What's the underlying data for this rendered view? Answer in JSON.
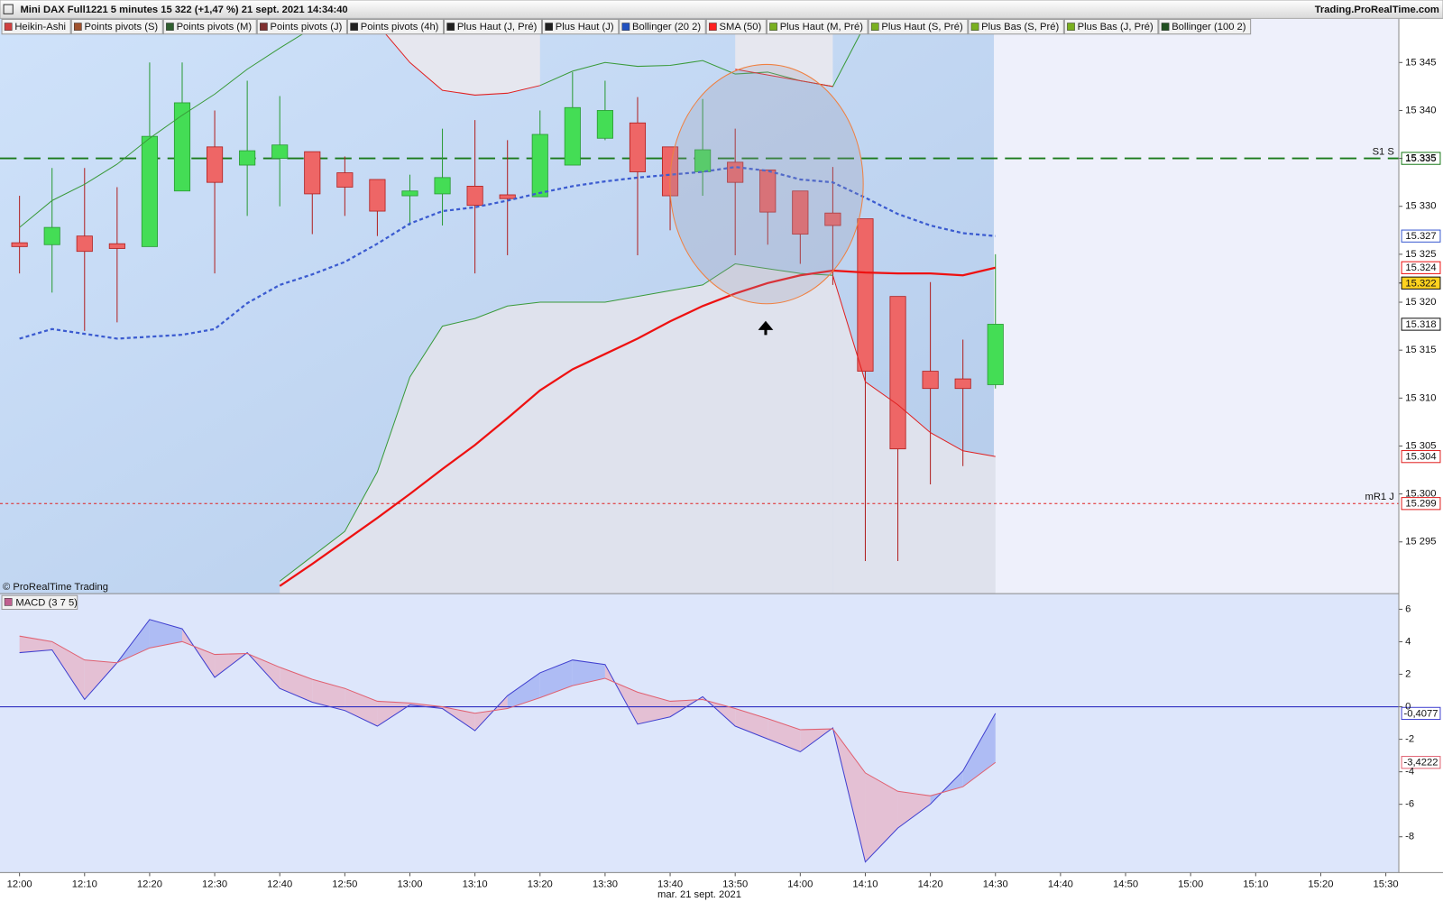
{
  "header": {
    "title": "Mini DAX Full1221 5 minutes 15 322 (+1,47 %) 21 sept. 2021 14:34:40",
    "site": "Trading.ProRealTime.com"
  },
  "indicator_tabs": [
    {
      "label": "Heikin-Ashi",
      "color": "#d04040"
    },
    {
      "label": "Points pivots (S)",
      "color": "#a0522d"
    },
    {
      "label": "Points pivots (M)",
      "color": "#306030"
    },
    {
      "label": "Points pivots (J)",
      "color": "#803030"
    },
    {
      "label": "Points pivots (4h)",
      "color": "#202020"
    },
    {
      "label": "Plus Haut (J, Pré)",
      "color": "#202020"
    },
    {
      "label": "Plus Haut (J)",
      "color": "#202020"
    },
    {
      "label": "Bollinger (20 2)",
      "color": "#2050c0"
    },
    {
      "label": "SMA (50)",
      "color": "#ff2020"
    },
    {
      "label": "Plus Haut (M, Pré)",
      "color": "#7ab020"
    },
    {
      "label": "Plus Haut (S, Pré)",
      "color": "#7ab020"
    },
    {
      "label": "Plus Bas (S, Pré)",
      "color": "#7ab020"
    },
    {
      "label": "Plus Bas (J, Pré)",
      "color": "#7ab020"
    },
    {
      "label": "Bollinger (100 2)",
      "color": "#205020"
    }
  ],
  "copyright": "© ProRealTime Trading",
  "chart_data": [
    {
      "type": "candlestick",
      "x": [
        "12:00",
        "12:05",
        "12:10",
        "12:15",
        "12:20",
        "12:25",
        "12:30",
        "12:35",
        "12:40",
        "12:45",
        "12:50",
        "12:55",
        "13:00",
        "13:05",
        "13:10",
        "13:15",
        "13:20",
        "13:25",
        "13:30",
        "13:35",
        "13:40",
        "13:45",
        "13:50",
        "13:55",
        "14:00",
        "14:05",
        "14:10",
        "14:15",
        "14:20",
        "14:25",
        "14:30"
      ],
      "open": [
        15326.2,
        15326.0,
        15326.9,
        15326.1,
        15325.8,
        15331.6,
        15336.2,
        15334.3,
        15335.0,
        15335.7,
        15333.5,
        15332.8,
        15331.1,
        15331.3,
        15332.1,
        15331.2,
        15331.0,
        15334.3,
        15337.1,
        15338.7,
        15336.2,
        15333.6,
        15334.6,
        15333.8,
        15331.6,
        15329.3,
        15328.7,
        15320.6,
        15312.8,
        15312.0,
        15311.4
      ],
      "high": [
        15331.1,
        15334.0,
        15334.0,
        15332.0,
        15345.0,
        15345.0,
        15340.0,
        15343.1,
        15341.5,
        15335.7,
        15335.2,
        15332.8,
        15333.3,
        15338.1,
        15339.0,
        15336.9,
        15340.0,
        15344.0,
        15343.1,
        15341.4,
        15336.2,
        15341.2,
        15338.1,
        15333.8,
        15331.6,
        15334.1,
        15328.7,
        15320.6,
        15322.1,
        15316.1,
        15325.0
      ],
      "low": [
        15323.0,
        15321.0,
        15317.0,
        15317.9,
        15325.8,
        15331.6,
        15323.0,
        15329.0,
        15330.0,
        15327.1,
        15329.0,
        15326.9,
        15328.0,
        15328.0,
        15323.0,
        15324.9,
        15331.0,
        15334.3,
        15336.9,
        15324.9,
        15327.5,
        15331.1,
        15324.9,
        15326.0,
        15324.0,
        15321.8,
        15293.0,
        15293.0,
        15301.0,
        15302.9,
        15311.0
      ],
      "close": [
        15325.8,
        15327.8,
        15325.3,
        15325.6,
        15337.3,
        15340.8,
        15332.5,
        15335.8,
        15336.4,
        15331.3,
        15332.0,
        15329.5,
        15331.6,
        15333.0,
        15330.1,
        15330.8,
        15337.5,
        15340.3,
        15340.0,
        15333.6,
        15331.1,
        15335.9,
        15332.5,
        15329.4,
        15327.1,
        15328.0,
        15312.8,
        15304.7,
        15311.0,
        15311.0,
        15317.7
      ],
      "up_color": "#44dd55",
      "down_color": "#ee6666",
      "last_value_label": "15.318",
      "current_price": 15322,
      "current_price_label": "15.322",
      "xlim": [
        "11:57",
        "15:32"
      ],
      "xticks": [
        "12:00",
        "12:10",
        "12:20",
        "12:30",
        "12:40",
        "12:50",
        "13:00",
        "13:10",
        "13:20",
        "13:30",
        "13:40",
        "13:50",
        "14:00",
        "14:10",
        "14:20",
        "14:30",
        "14:40",
        "14:50",
        "15:00",
        "15:10",
        "15:20",
        "15:30"
      ],
      "x_label": "mar. 21 sept. 2021",
      "ylim": [
        15289.6,
        15349.6
      ],
      "yticks": [
        {
          "value": 15295,
          "label": "15 295"
        },
        {
          "value": 15300,
          "label": "15.300"
        },
        {
          "value": 15305,
          "label": "15 305"
        },
        {
          "value": 15310,
          "label": "15 310"
        },
        {
          "value": 15315,
          "label": "15 315"
        },
        {
          "value": 15320,
          "label": "15 320"
        },
        {
          "value": 15325,
          "label": "15 325"
        },
        {
          "value": 15330,
          "label": "15 330"
        },
        {
          "value": 15335,
          "label": "15 335"
        },
        {
          "value": 15340,
          "label": "15 340"
        },
        {
          "value": 15345,
          "label": "15 345"
        }
      ],
      "overlays": [
        {
          "color": "#3b5bd0",
          "style": "dotted",
          "width": 2.2,
          "last_value_label": "15.327",
          "values": [
            15316.2,
            15317.2,
            15316.7,
            15316.2,
            15316.4,
            15316.6,
            15317.2,
            15319.9,
            15321.8,
            15322.9,
            15324.2,
            15326.1,
            15328.2,
            15329.5,
            15329.9,
            15330.6,
            15331.4,
            15332.1,
            15332.6,
            15333.0,
            15333.3,
            15333.6,
            15334.1,
            15333.7,
            15332.8,
            15332.5,
            15330.9,
            15329.2,
            15328.0,
            15327.2,
            15326.9
          ]
        },
        {
          "color": "#3a9a3a",
          "style": "solid",
          "width": 1,
          "values": [
            15327.8,
            15330.6,
            15332.3,
            15334.4,
            15337.1,
            15339.5,
            15341.7,
            15344.3,
            15346.5,
            15348.6,
            null,
            null,
            null,
            null,
            null,
            null,
            15342.6,
            15344.1,
            15345.0,
            15344.6,
            15344.7,
            15345.2,
            15343.8,
            15344.0,
            15343.1,
            15342.5,
            15349.0,
            null,
            null,
            null,
            null
          ]
        },
        {
          "color": "#e02020",
          "style": "solid",
          "width": 1,
          "fill_above": "#e6e7ef",
          "values": [
            null,
            null,
            null,
            null,
            null,
            null,
            null,
            null,
            null,
            null,
            null,
            15349.0,
            15345.0,
            15342.1,
            15341.6,
            15341.8,
            15342.6,
            null,
            null,
            null,
            null,
            null,
            15344.3,
            15343.7,
            15343.1,
            15342.5,
            null,
            null,
            null,
            null,
            null
          ]
        },
        {
          "color": "#3a9a3a",
          "style": "solid",
          "width": 1,
          "fill_below": "#dfe2ed",
          "values": [
            null,
            null,
            null,
            null,
            null,
            null,
            null,
            null,
            15290.9,
            15293.5,
            15296.1,
            15302.3,
            15312.2,
            15317.5,
            15318.3,
            15319.6,
            15320.0,
            15320.0,
            15320.0,
            15320.6,
            15321.2,
            15321.8,
            15324.0,
            15323.5,
            15323.0,
            15322.8,
            null,
            null,
            null,
            null,
            null
          ]
        },
        {
          "color": "#e02020",
          "style": "solid",
          "width": 1,
          "fill_below": "#dfe2ed",
          "last_value_label": "15.304",
          "values": [
            null,
            null,
            null,
            null,
            null,
            null,
            null,
            null,
            null,
            null,
            null,
            null,
            null,
            null,
            null,
            null,
            null,
            null,
            null,
            null,
            null,
            null,
            null,
            null,
            null,
            15322.8,
            15311.7,
            15309.3,
            15306.4,
            15304.5,
            15303.9
          ]
        },
        {
          "color": "#ee1111",
          "style": "solid",
          "width": 2.2,
          "last_value_label": "15.324",
          "values": [
            null,
            null,
            null,
            null,
            null,
            null,
            null,
            null,
            15290.4,
            15292.7,
            15295.1,
            15297.5,
            15300.0,
            15302.6,
            15305.1,
            15307.9,
            15310.8,
            15313.0,
            15314.6,
            15316.2,
            15318.0,
            15319.6,
            15320.9,
            15322.0,
            15322.8,
            15323.3,
            15323.1,
            15323.0,
            15323.0,
            15322.8,
            15323.6
          ]
        }
      ],
      "levels": {
        "labels": [
          "S1 S",
          "mR1 J"
        ],
        "values": [
          15335,
          15299
        ],
        "value_labels": [
          "15.335",
          "15.299"
        ],
        "colors": [
          "#1a7a1a",
          "#e02020"
        ],
        "styles": [
          "dashed",
          "dotted"
        ]
      }
    },
    {
      "type": "line",
      "title": "MACD (3 7 5)",
      "x": [
        "12:00",
        "12:05",
        "12:10",
        "12:15",
        "12:20",
        "12:25",
        "12:30",
        "12:35",
        "12:40",
        "12:45",
        "12:50",
        "12:55",
        "13:00",
        "13:05",
        "13:10",
        "13:15",
        "13:20",
        "13:25",
        "13:30",
        "13:35",
        "13:40",
        "13:45",
        "13:50",
        "13:55",
        "14:00",
        "14:05",
        "14:10",
        "14:15",
        "14:20",
        "14:25",
        "14:30"
      ],
      "ylim": [
        -10.2,
        6.96
      ],
      "yticks": [
        -8,
        -6,
        -4,
        -2,
        0,
        2,
        4,
        6
      ],
      "zero_line_color": "#3030c0",
      "fill_above_color": "#aebcf4",
      "fill_below_color": "#e4c0d4",
      "series": [
        {
          "color": "#4040d0",
          "last_value_label": "-0,4077",
          "values": [
            3.33,
            3.5,
            0.45,
            2.71,
            5.37,
            4.8,
            1.81,
            3.33,
            1.13,
            0.28,
            -0.23,
            -1.19,
            0.11,
            -0.11,
            -1.47,
            0.68,
            2.09,
            2.88,
            2.6,
            -1.07,
            -0.62,
            0.62,
            -1.19,
            -1.98,
            -2.77,
            -1.3,
            -9.55,
            -7.46,
            -5.99,
            -3.95,
            -0.4077
          ]
        },
        {
          "color": "#e06070",
          "last_value_label": "-3,4222",
          "values": [
            4.35,
            4.01,
            2.88,
            2.71,
            3.62,
            4.01,
            3.22,
            3.28,
            2.43,
            1.69,
            1.13,
            0.34,
            0.23,
            0,
            -0.4,
            -0.11,
            0.56,
            1.3,
            1.75,
            0.9,
            0.34,
            0.45,
            -0.11,
            -0.73,
            -1.41,
            -1.36,
            -4.07,
            -5.2,
            -5.48,
            -4.92,
            -3.4222
          ]
        }
      ]
    }
  ]
}
